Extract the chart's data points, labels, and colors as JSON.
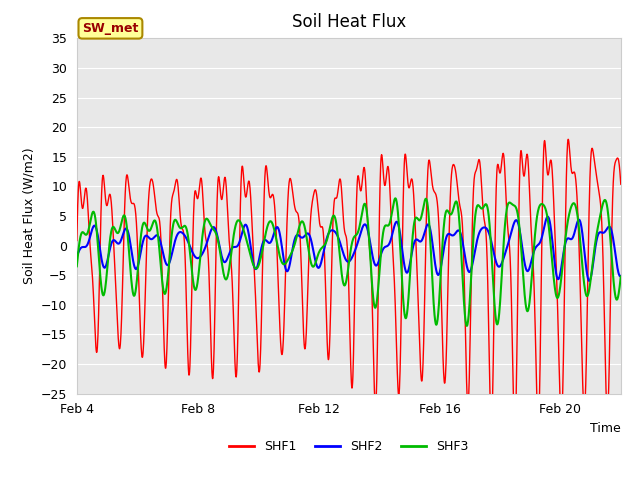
{
  "title": "Soil Heat Flux",
  "ylabel": "Soil Heat Flux (W/m2)",
  "time_label": "Time",
  "ylim": [
    -25,
    35
  ],
  "yticks": [
    -25,
    -20,
    -15,
    -10,
    -5,
    0,
    5,
    10,
    15,
    20,
    25,
    30,
    35
  ],
  "line_colors": {
    "SHF1": "#ff0000",
    "SHF2": "#0000ff",
    "SHF3": "#00bb00"
  },
  "line_widths": {
    "SHF1": 1.0,
    "SHF2": 1.5,
    "SHF3": 1.5
  },
  "x_tick_labels": [
    "Feb 4",
    "Feb 8",
    "Feb 12",
    "Feb 16",
    "Feb 20"
  ],
  "x_tick_positions": [
    0,
    4,
    8,
    12,
    16
  ],
  "x_range": [
    0,
    18
  ],
  "total_days": 18,
  "plot_bg_color": "#e8e8e8",
  "fig_bg_color": "#ffffff",
  "grid_color": "#ffffff",
  "annotation_text": "SW_met",
  "annotation_bg": "#ffff99",
  "annotation_border": "#aa8800",
  "annotation_text_color": "#990000",
  "title_fontsize": 12,
  "label_fontsize": 9,
  "tick_fontsize": 9
}
